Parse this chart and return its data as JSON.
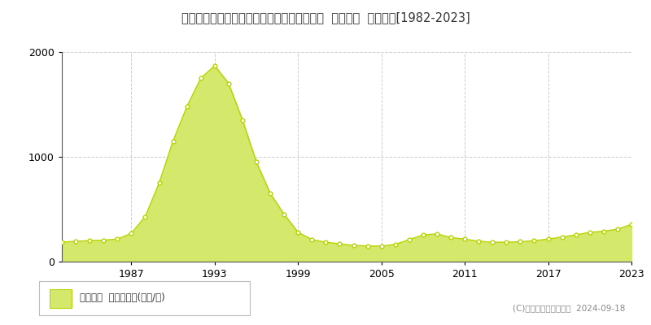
{
  "title": "北海道札幌市中央区北１条西７丁目３番３外  公示地価  地価推移[1982-2023]",
  "years": [
    1982,
    1983,
    1984,
    1985,
    1986,
    1987,
    1988,
    1989,
    1990,
    1991,
    1992,
    1993,
    1994,
    1995,
    1996,
    1997,
    1998,
    1999,
    2000,
    2001,
    2002,
    2003,
    2004,
    2005,
    2006,
    2007,
    2008,
    2009,
    2010,
    2011,
    2012,
    2013,
    2014,
    2015,
    2016,
    2017,
    2018,
    2019,
    2020,
    2021,
    2022,
    2023
  ],
  "values": [
    185,
    195,
    200,
    205,
    215,
    270,
    430,
    750,
    1150,
    1480,
    1750,
    1870,
    1700,
    1350,
    950,
    650,
    450,
    280,
    210,
    185,
    170,
    155,
    150,
    148,
    165,
    210,
    255,
    265,
    230,
    215,
    195,
    185,
    185,
    190,
    200,
    215,
    235,
    255,
    280,
    290,
    310,
    355
  ],
  "fill_color": "#d4e96b",
  "line_color": "#b8d400",
  "marker_color": "#ffffff",
  "marker_edge_color": "#b8d400",
  "ylim": [
    0,
    2000
  ],
  "yticks": [
    0,
    1000,
    2000
  ],
  "ytick_labels": [
    "0",
    "1000",
    "2000"
  ],
  "xtick_positions": [
    1987,
    1993,
    1999,
    2005,
    2011,
    2017,
    2023
  ],
  "xtick_labels": [
    "1987",
    "1993",
    "1999",
    "2005",
    "2011",
    "2017",
    "2023"
  ],
  "grid_color": "#cccccc",
  "background_color": "#ffffff",
  "legend_label": "公示地価  平均坪単価(万円/坪)",
  "copyright_text": "(C)土地価格ドットコム  2024-09-18",
  "legend_box_color": "#d4e96b"
}
